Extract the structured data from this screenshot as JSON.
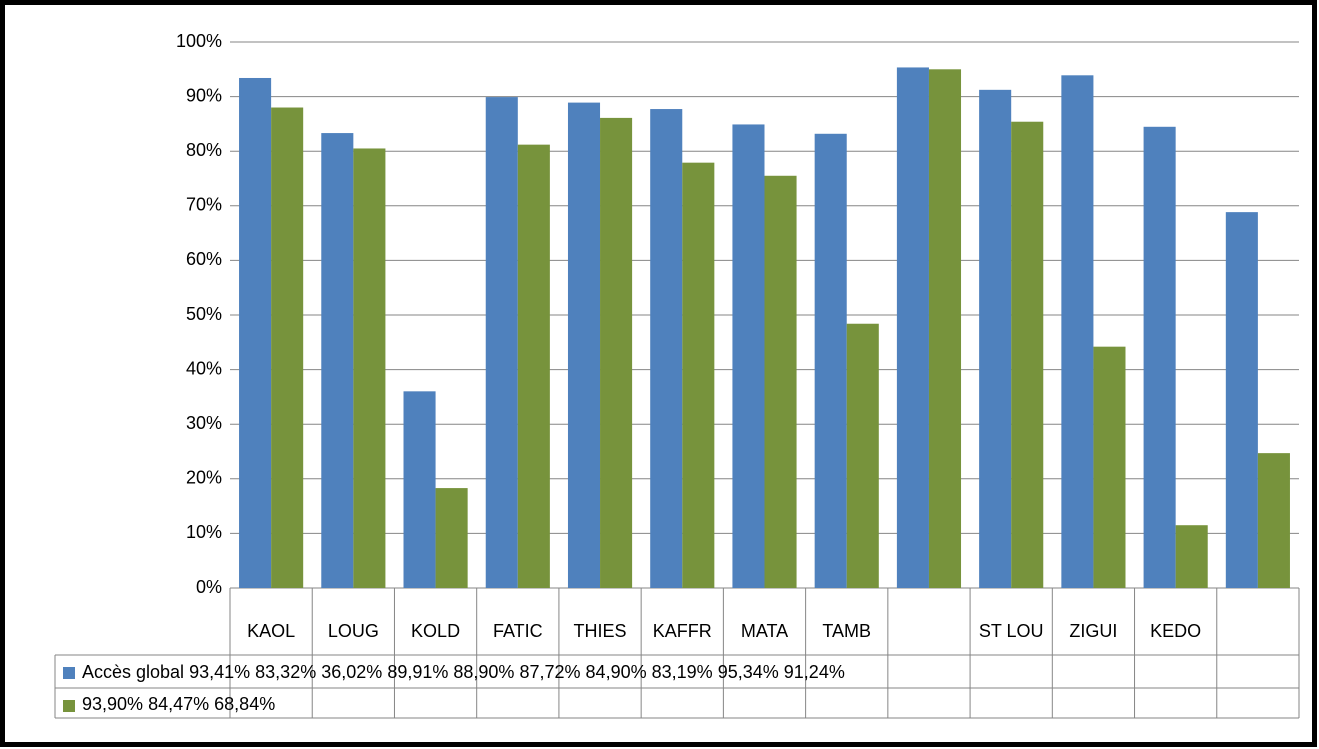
{
  "chart_data": {
    "type": "bar",
    "categories": [
      "KAOL",
      "LOUG",
      "KOLD",
      "FATIC",
      "THIES",
      "KAFFR",
      "MATA",
      "TAMB",
      null,
      "ST LOU",
      "ZIGUI",
      "KEDO",
      null
    ],
    "series": [
      {
        "name": "Accès global",
        "color": "#4f81bd",
        "values": [
          93.41,
          83.32,
          36.02,
          89.91,
          88.9,
          87.72,
          84.9,
          83.19,
          95.34,
          91.24,
          93.9,
          84.47,
          68.84
        ],
        "value_labels": [
          "93,41%",
          "83,32%",
          "36,02%",
          "89,91%",
          "88,90%",
          "87,72%",
          "84,90%",
          "83,19%",
          "95,34%",
          "91,24%",
          "93,90%",
          "84,47%",
          "68,84%"
        ]
      },
      {
        "name": null,
        "color": "#77933c",
        "values": [
          88,
          80.5,
          18.3,
          81.2,
          86.1,
          77.9,
          75.5,
          48.4,
          95,
          85.4,
          44.2,
          11.5,
          24.7
        ]
      }
    ],
    "ylim": [
      0,
      100
    ],
    "yticks": [
      {
        "value": 0,
        "label": "0%"
      },
      {
        "value": 10,
        "label": "10%"
      },
      {
        "value": 20,
        "label": "20%"
      },
      {
        "value": 30,
        "label": "30%"
      },
      {
        "value": 40,
        "label": "40%"
      },
      {
        "value": 50,
        "label": "50%"
      },
      {
        "value": 60,
        "label": "60%"
      },
      {
        "value": 70,
        "label": "70%"
      },
      {
        "value": 80,
        "label": "80%"
      },
      {
        "value": 90,
        "label": "90%"
      },
      {
        "value": 100,
        "label": "100%"
      }
    ],
    "grid": true
  }
}
